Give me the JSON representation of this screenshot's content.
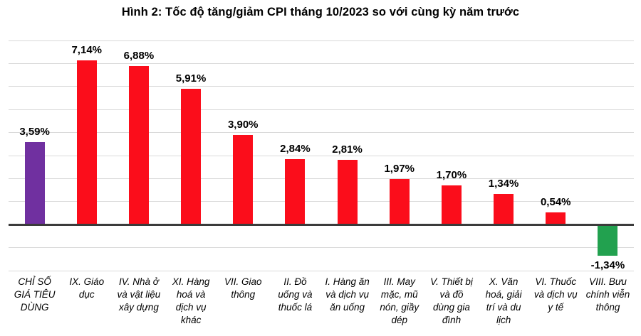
{
  "title": "Hình 2: Tốc độ tăng/giảm CPI tháng 10/2023 so với cùng kỳ năm trước",
  "chart_data": {
    "type": "bar",
    "title": "Hình 2: Tốc độ tăng/giảm CPI tháng 10/2023 so với cùng kỳ năm trước",
    "categories": [
      "CHỈ SỐ GIÁ TIÊU DÙNG",
      "IX. Giáo dục",
      "IV. Nhà ở và vật liệu xây dựng",
      "XI. Hàng hoá và dịch vụ khác",
      "VII. Giao thông",
      "II. Đồ uống và thuốc lá",
      "I. Hàng ăn và dịch vụ ăn uống",
      "III. May mặc, mũ nón, giầy dép",
      "V. Thiết bị và đồ dùng gia đình",
      "X. Văn hoá, giải trí và du lịch",
      "VI. Thuốc và dịch vụ y tế",
      "VIII. Bưu chính viễn thông"
    ],
    "values": [
      3.59,
      7.14,
      6.88,
      5.91,
      3.9,
      2.84,
      2.81,
      1.97,
      1.7,
      1.34,
      0.54,
      -1.34
    ],
    "value_labels": [
      "3,59%",
      "7,14%",
      "6,88%",
      "5,91%",
      "3,90%",
      "2,84%",
      "2,81%",
      "1,97%",
      "1,70%",
      "1,34%",
      "0,54%",
      "-1,34%"
    ],
    "bar_colors": [
      "#7030A0",
      "#FB0D1B",
      "#FB0D1B",
      "#FB0D1B",
      "#FB0D1B",
      "#FB0D1B",
      "#FB0D1B",
      "#FB0D1B",
      "#FB0D1B",
      "#FB0D1B",
      "#FB0D1B",
      "#22A14F"
    ],
    "colors": {
      "cpi_index": "#7030A0",
      "increase": "#FB0D1B",
      "decrease": "#22A14F",
      "gridline": "#D9D9D9",
      "zero_axis": "#3B3B3B",
      "text": "#000000"
    },
    "xlabel": "",
    "ylabel": "",
    "ylim": [
      -2,
      8
    ],
    "gridline_step": 1,
    "grid": true,
    "legend": "none",
    "value_label_format": "comma-decimal percent"
  }
}
